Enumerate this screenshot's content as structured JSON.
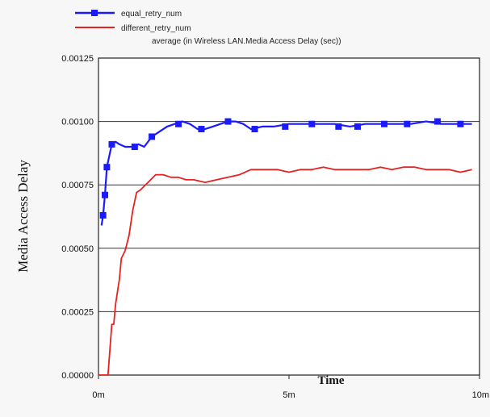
{
  "chart_data": {
    "type": "line",
    "title": "average (in Wireless LAN.Media Access Delay (sec))",
    "xlabel": "Time",
    "ylabel": "Media Access Delay",
    "xlim": [
      0,
      10
    ],
    "ylim": [
      0,
      0.00125
    ],
    "x_ticks": [
      {
        "value": 0,
        "label": "0m"
      },
      {
        "value": 5,
        "label": "5m"
      },
      {
        "value": 10,
        "label": "10m"
      }
    ],
    "y_ticks": [
      {
        "value": 0,
        "label": "0.00000"
      },
      {
        "value": 0.00025,
        "label": "0.00025"
      },
      {
        "value": 0.0005,
        "label": "0.00050"
      },
      {
        "value": 0.00075,
        "label": "0.00075"
      },
      {
        "value": 0.001,
        "label": "0.00100"
      },
      {
        "value": 0.00125,
        "label": "0.00125"
      }
    ],
    "grid": "horizontal",
    "legend_position": "top-left",
    "series": [
      {
        "name": "equal_retry_num",
        "color": "#1a1aff",
        "marker": "square",
        "x": [
          0.08,
          0.12,
          0.17,
          0.22,
          0.35,
          0.45,
          0.55,
          0.7,
          0.9,
          1.05,
          1.2,
          1.4,
          1.6,
          1.8,
          2.0,
          2.2,
          2.4,
          2.6,
          2.8,
          3.0,
          3.2,
          3.4,
          3.6,
          3.8,
          4.0,
          4.3,
          4.6,
          5.0,
          5.4,
          5.8,
          6.2,
          6.6,
          7.0,
          7.4,
          7.8,
          8.2,
          8.6,
          9.0,
          9.4,
          9.8
        ],
        "y": [
          0.00059,
          0.00063,
          0.00071,
          0.00082,
          0.00091,
          0.00092,
          0.00091,
          0.0009,
          0.0009,
          0.00091,
          0.0009,
          0.00094,
          0.00096,
          0.00098,
          0.00099,
          0.001,
          0.00099,
          0.00097,
          0.00097,
          0.00098,
          0.00099,
          0.001,
          0.001,
          0.00099,
          0.00097,
          0.00098,
          0.00098,
          0.00099,
          0.00099,
          0.00099,
          0.00099,
          0.00098,
          0.00099,
          0.00099,
          0.00099,
          0.00099,
          0.001,
          0.00099,
          0.00099,
          0.00099
        ],
        "marker_x": [
          0.12,
          0.17,
          0.22,
          0.35,
          0.95,
          1.4,
          2.1,
          2.7,
          3.4,
          4.1,
          4.9,
          5.6,
          6.3,
          6.8,
          7.5,
          8.1,
          8.9,
          9.5
        ],
        "marker_y": [
          0.00063,
          0.00071,
          0.00082,
          0.00091,
          0.0009,
          0.00094,
          0.00099,
          0.00097,
          0.001,
          0.00097,
          0.00098,
          0.00099,
          0.00098,
          0.00098,
          0.00099,
          0.00099,
          0.001,
          0.00099
        ]
      },
      {
        "name": "different_retry_num",
        "color": "#e82020",
        "marker": "none",
        "x": [
          0.0,
          0.25,
          0.35,
          0.4,
          0.45,
          0.55,
          0.6,
          0.7,
          0.8,
          0.9,
          1.0,
          1.1,
          1.3,
          1.5,
          1.7,
          1.9,
          2.1,
          2.3,
          2.5,
          2.8,
          3.1,
          3.4,
          3.7,
          4.0,
          4.3,
          4.7,
          5.0,
          5.3,
          5.6,
          5.9,
          6.2,
          6.5,
          6.8,
          7.1,
          7.4,
          7.7,
          8.0,
          8.3,
          8.6,
          8.9,
          9.2,
          9.5,
          9.8
        ],
        "y": [
          0.0,
          0.0,
          0.0002,
          0.0002,
          0.00028,
          0.00038,
          0.00046,
          0.00049,
          0.00055,
          0.00065,
          0.00072,
          0.00073,
          0.00076,
          0.00079,
          0.00079,
          0.00078,
          0.00078,
          0.00077,
          0.00077,
          0.00076,
          0.00077,
          0.00078,
          0.00079,
          0.00081,
          0.00081,
          0.00081,
          0.0008,
          0.00081,
          0.00081,
          0.00082,
          0.00081,
          0.00081,
          0.00081,
          0.00081,
          0.00082,
          0.00081,
          0.00082,
          0.00082,
          0.00081,
          0.00081,
          0.00081,
          0.0008,
          0.00081
        ]
      }
    ]
  }
}
